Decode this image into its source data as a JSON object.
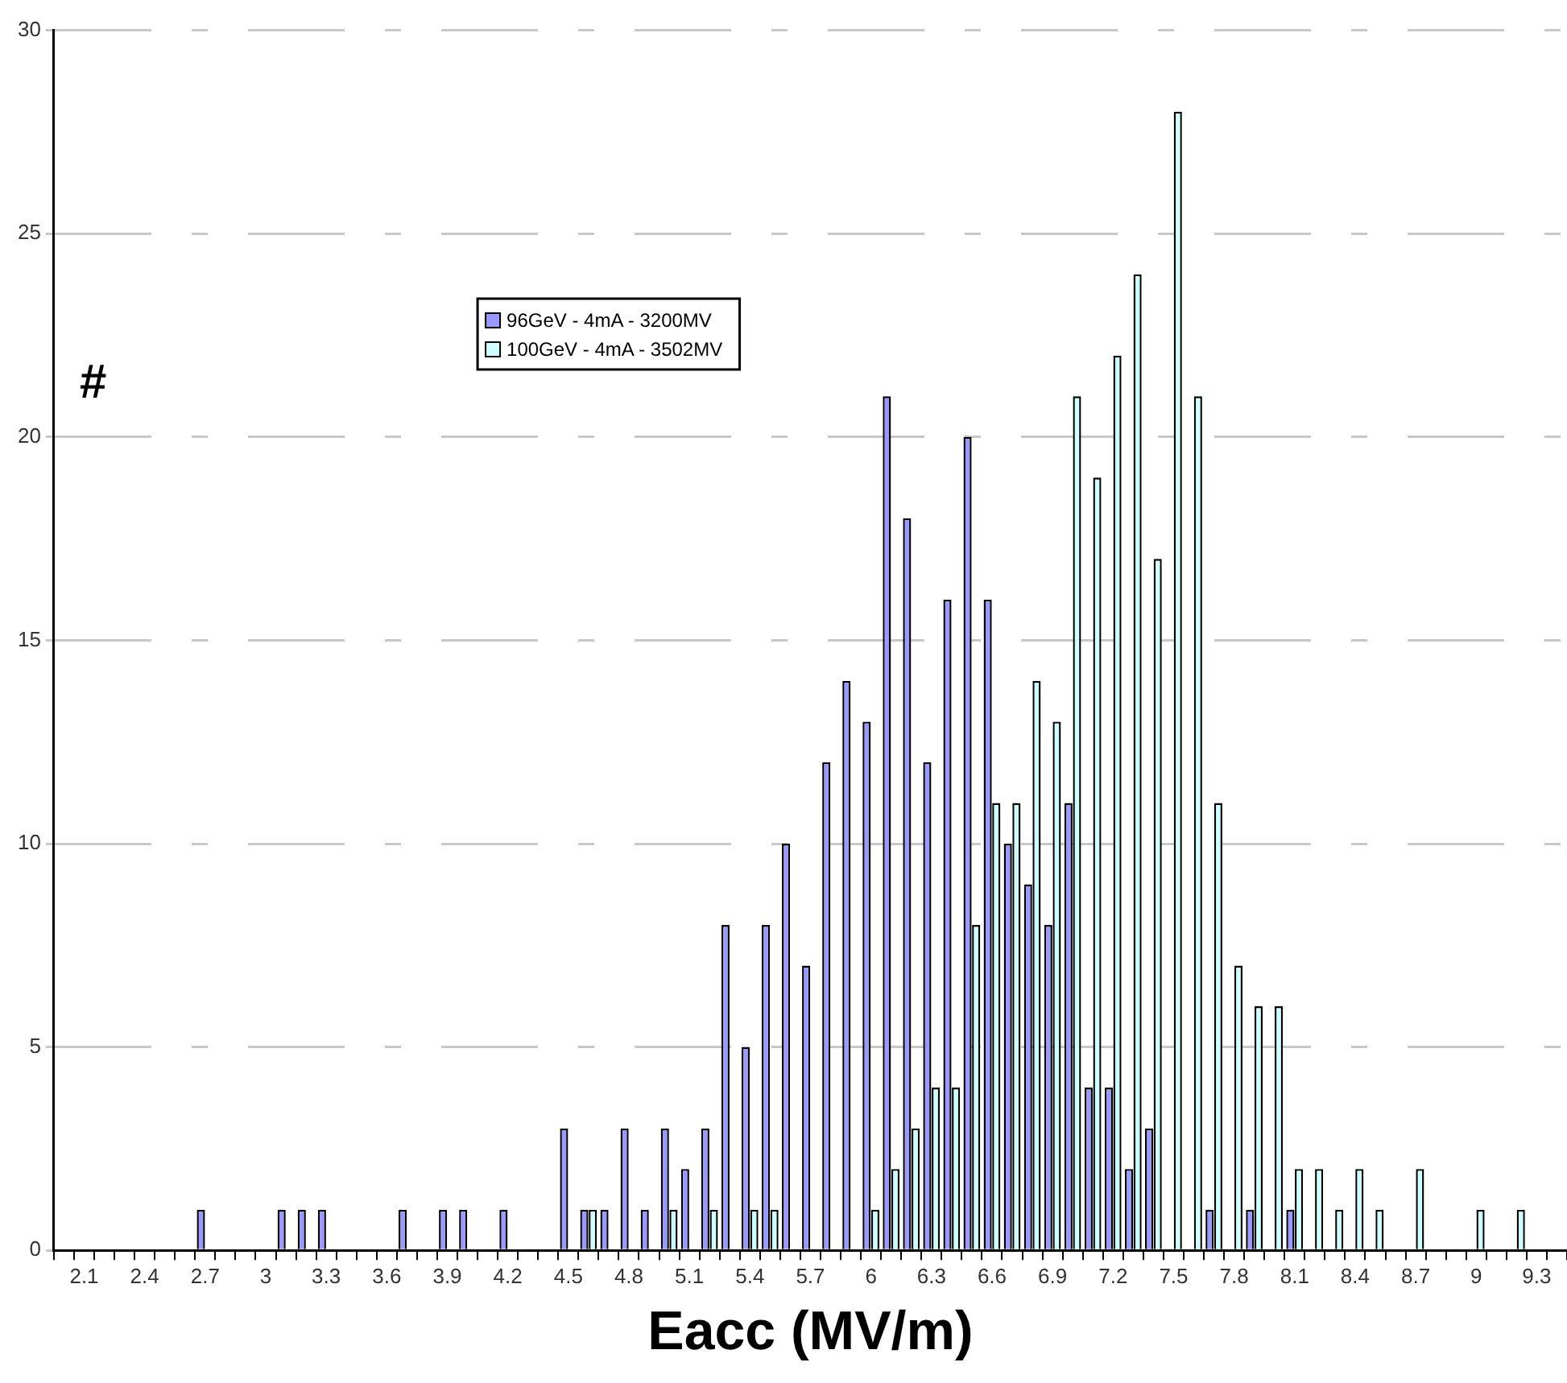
{
  "chart_data": {
    "type": "bar",
    "xlabel": "Eacc (MV/m)",
    "ylabel": "#",
    "categories": [
      null,
      "2.1",
      null,
      null,
      "2.4",
      null,
      null,
      "2.7",
      null,
      null,
      "3",
      null,
      null,
      "3.3",
      null,
      null,
      "3.6",
      null,
      null,
      "3.9",
      null,
      null,
      "4.2",
      null,
      null,
      "4.5",
      null,
      null,
      "4.8",
      null,
      null,
      "5.1",
      null,
      null,
      "5.4",
      null,
      null,
      "5.7",
      null,
      null,
      "6",
      null,
      null,
      "6.3",
      null,
      null,
      "6.6",
      null,
      null,
      "6.9",
      null,
      null,
      "7.2",
      null,
      null,
      "7.5",
      null,
      null,
      "7.8",
      null,
      null,
      "8.1",
      null,
      null,
      "8.4",
      null,
      null,
      "8.7",
      null,
      null,
      "9",
      null,
      null,
      "9.3",
      null
    ],
    "series": [
      {
        "name": "96GeV - 4mA - 3200MV",
        "color": "#9999ff",
        "values": [
          0,
          0,
          0,
          0,
          0,
          0,
          0,
          1,
          0,
          0,
          0,
          1,
          1,
          1,
          0,
          0,
          0,
          1,
          0,
          1,
          1,
          0,
          1,
          0,
          0,
          3,
          1,
          1,
          3,
          1,
          3,
          2,
          3,
          8,
          5,
          8,
          10,
          7,
          12,
          14,
          13,
          21,
          18,
          12,
          16,
          20,
          16,
          10,
          9,
          8,
          11,
          4,
          4,
          2,
          3,
          0,
          0,
          1,
          0,
          1,
          0,
          1,
          0,
          0,
          0,
          0,
          0,
          0,
          0,
          0,
          0,
          0,
          0,
          0,
          0
        ]
      },
      {
        "name": "100GeV - 4mA - 3502MV",
        "color": "#ccffff",
        "values": [
          0,
          0,
          0,
          0,
          0,
          0,
          0,
          0,
          0,
          0,
          0,
          0,
          0,
          0,
          0,
          0,
          0,
          0,
          0,
          0,
          0,
          0,
          0,
          0,
          0,
          0,
          1,
          0,
          0,
          0,
          1,
          0,
          1,
          0,
          1,
          1,
          0,
          0,
          0,
          0,
          1,
          2,
          3,
          4,
          4,
          8,
          11,
          11,
          14,
          13,
          21,
          19,
          22,
          24,
          17,
          28,
          21,
          11,
          7,
          6,
          6,
          2,
          2,
          1,
          2,
          1,
          0,
          2,
          0,
          0,
          1,
          0,
          1,
          0,
          0
        ]
      }
    ],
    "ylim": [
      0,
      30
    ],
    "yticks": [
      0,
      5,
      10,
      15,
      20,
      25,
      30
    ],
    "grid": "y",
    "legend": "top left"
  }
}
